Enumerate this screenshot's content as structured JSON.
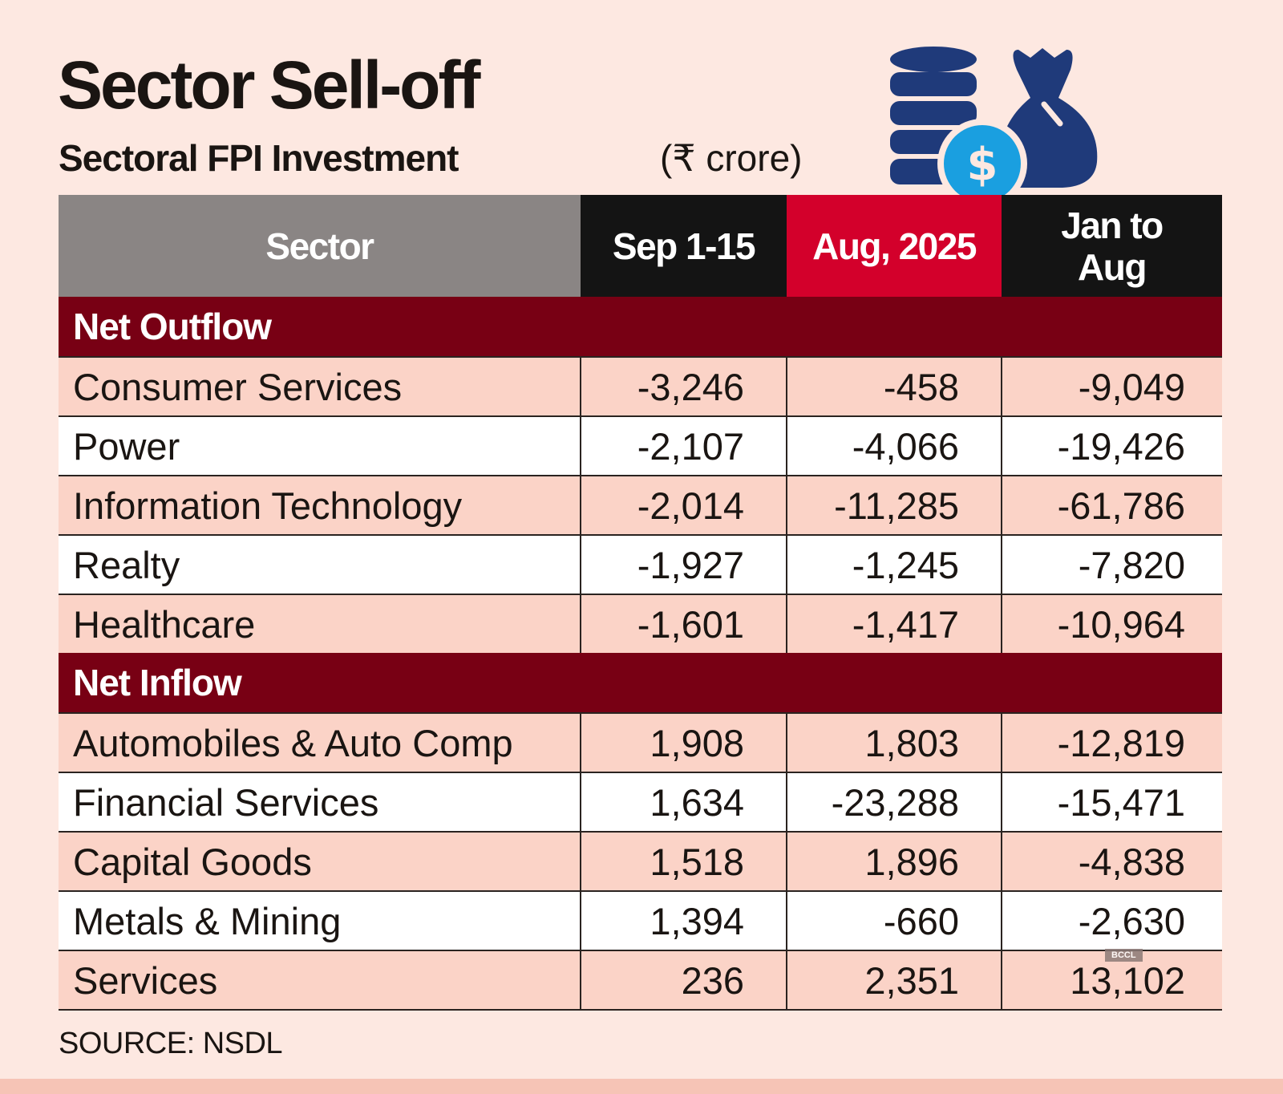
{
  "title": "Sector Sell-off",
  "subtitle": "Sectoral FPI Investment",
  "unit": "(₹ crore)",
  "icons": [
    "coin-stack-icon",
    "money-bag-icon",
    "dollar-coin-icon"
  ],
  "colors": {
    "background": "#fde8e1",
    "header_sector": "#8a8584",
    "header_dark": "#141414",
    "header_red": "#d3002b",
    "section": "#780014",
    "row_tint": "#fbd3c7",
    "icon_navy": "#1f3a7a",
    "icon_blue": "#1a9fe0"
  },
  "watermark": "BCCL",
  "source": "SOURCE: NSDL",
  "chart_data": {
    "type": "table",
    "columns": [
      "Sector",
      "Sep 1-15",
      "Aug, 2025",
      "Jan to Aug"
    ],
    "sections": [
      {
        "label": "Net Outflow",
        "rows": [
          [
            "Consumer Services",
            "-3,246",
            "-458",
            "-9,049"
          ],
          [
            "Power",
            "-2,107",
            "-4,066",
            "-19,426"
          ],
          [
            "Information Technology",
            "-2,014",
            "-11,285",
            "-61,786"
          ],
          [
            "Realty",
            "-1,927",
            "-1,245",
            "-7,820"
          ],
          [
            "Healthcare",
            "-1,601",
            "-1,417",
            "-10,964"
          ]
        ]
      },
      {
        "label": "Net Inflow",
        "rows": [
          [
            "Automobiles & Auto Comp",
            "1,908",
            "1,803",
            "-12,819"
          ],
          [
            "Financial Services",
            "1,634",
            "-23,288",
            "-15,471"
          ],
          [
            "Capital Goods",
            "1,518",
            "1,896",
            "-4,838"
          ],
          [
            "Metals & Mining",
            "1,394",
            "-660",
            "-2,630"
          ],
          [
            "Services",
            "236",
            "2,351",
            "13,102"
          ]
        ]
      }
    ]
  }
}
